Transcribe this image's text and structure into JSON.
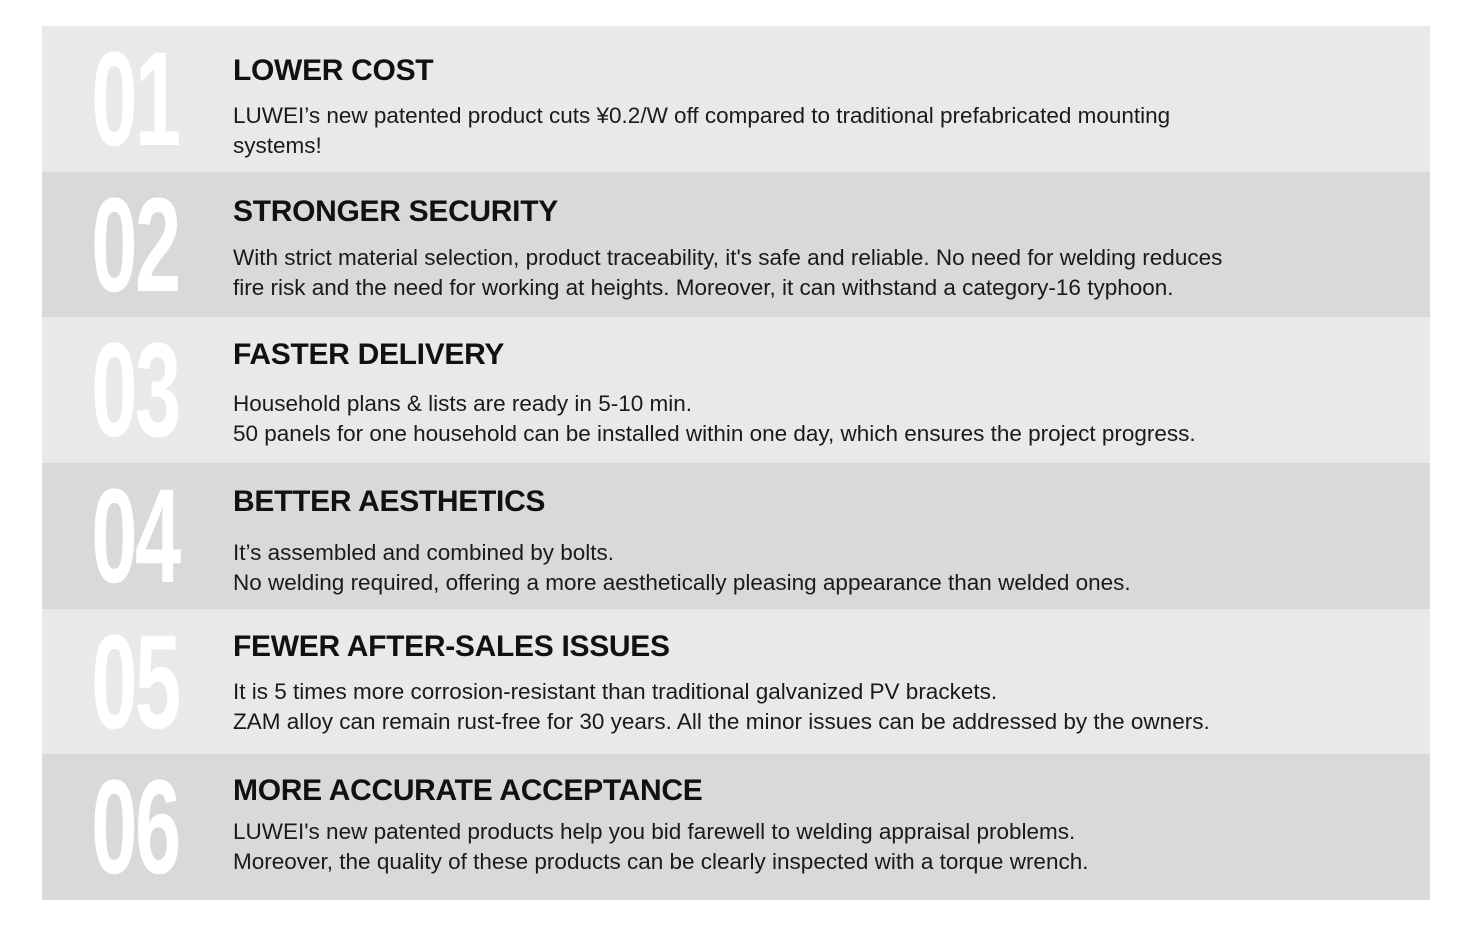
{
  "items": [
    {
      "number": "01",
      "title": "LOWER COST",
      "lines": [
        "LUWEI’s new patented product cuts ¥0.2/W off compared to traditional prefabricated mounting",
        "systems!"
      ]
    },
    {
      "number": "02",
      "title": "STRONGER SECURITY",
      "lines": [
        "With strict material selection, product traceability, it's safe and reliable. No need for welding reduces",
        "fire risk and the need for working at heights. Moreover, it can withstand a category-16 typhoon."
      ]
    },
    {
      "number": "03",
      "title": "FASTER DELIVERY",
      "lines": [
        "Household plans & lists are ready in 5-10 min.",
        "50 panels for one household can be installed within one day, which ensures the project progress."
      ]
    },
    {
      "number": "04",
      "title": "BETTER AESTHETICS",
      "lines": [
        "It’s assembled and combined by bolts.",
        "No welding required, offering a more aesthetically pleasing appearance than welded ones."
      ]
    },
    {
      "number": "05",
      "title": "FEWER AFTER-SALES ISSUES",
      "lines": [
        "It is 5 times more corrosion-resistant than traditional galvanized PV brackets.",
        "ZAM alloy can remain rust-free for 30 years. All the minor issues can be addressed by the owners."
      ]
    },
    {
      "number": "06",
      "title": "MORE ACCURATE ACCEPTANCE",
      "lines": [
        "LUWEI's new patented products help you bid farewell to welding appraisal problems.",
        "Moreover, the quality of these products can be clearly inspected with a torque wrench."
      ]
    }
  ],
  "colors": {
    "row_light": "#e9e9e9",
    "row_dark": "#d9d9d9",
    "number": "#ffffff",
    "text": "#111111"
  }
}
